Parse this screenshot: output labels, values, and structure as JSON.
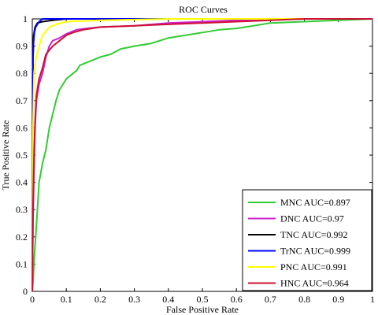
{
  "chart_data": {
    "type": "line",
    "title": "ROC Curves",
    "xlabel": "False Positive Rate",
    "ylabel": "True Positive Rate",
    "xlim": [
      0,
      1
    ],
    "ylim": [
      0,
      1
    ],
    "xticks": [
      "0",
      "0.1",
      "0.2",
      "0.3",
      "0.4",
      "0.5",
      "0.6",
      "0.7",
      "0.8",
      "0.9",
      "1"
    ],
    "yticks": [
      "0",
      "0.1",
      "0.2",
      "0.3",
      "0.4",
      "0.5",
      "0.6",
      "0.7",
      "0.8",
      "0.9",
      "1"
    ],
    "grid": false,
    "legend_position": "bottom-right",
    "series": [
      {
        "name": "MNC AUC=0.897",
        "color": "#33cc33",
        "points": [
          [
            0,
            0
          ],
          [
            0.003,
            0.05
          ],
          [
            0.006,
            0.13
          ],
          [
            0.01,
            0.2
          ],
          [
            0.015,
            0.3
          ],
          [
            0.02,
            0.4
          ],
          [
            0.03,
            0.47
          ],
          [
            0.04,
            0.52
          ],
          [
            0.05,
            0.6
          ],
          [
            0.06,
            0.65
          ],
          [
            0.07,
            0.7
          ],
          [
            0.08,
            0.74
          ],
          [
            0.09,
            0.76
          ],
          [
            0.1,
            0.78
          ],
          [
            0.12,
            0.8
          ],
          [
            0.13,
            0.81
          ],
          [
            0.14,
            0.83
          ],
          [
            0.16,
            0.84
          ],
          [
            0.18,
            0.85
          ],
          [
            0.2,
            0.86
          ],
          [
            0.23,
            0.87
          ],
          [
            0.26,
            0.89
          ],
          [
            0.3,
            0.9
          ],
          [
            0.35,
            0.91
          ],
          [
            0.4,
            0.93
          ],
          [
            0.45,
            0.94
          ],
          [
            0.5,
            0.95
          ],
          [
            0.55,
            0.96
          ],
          [
            0.6,
            0.965
          ],
          [
            0.65,
            0.975
          ],
          [
            0.7,
            0.985
          ],
          [
            0.8,
            0.99
          ],
          [
            0.9,
            0.995
          ],
          [
            1,
            1
          ]
        ]
      },
      {
        "name": "DNC AUC=0.97",
        "color": "#cc22cc",
        "points": [
          [
            0,
            0
          ],
          [
            0.002,
            0.25
          ],
          [
            0.005,
            0.45
          ],
          [
            0.008,
            0.6
          ],
          [
            0.012,
            0.7
          ],
          [
            0.02,
            0.76
          ],
          [
            0.03,
            0.8
          ],
          [
            0.04,
            0.86
          ],
          [
            0.05,
            0.9
          ],
          [
            0.06,
            0.92
          ],
          [
            0.08,
            0.93
          ],
          [
            0.1,
            0.945
          ],
          [
            0.13,
            0.96
          ],
          [
            0.16,
            0.965
          ],
          [
            0.2,
            0.97
          ],
          [
            0.3,
            0.975
          ],
          [
            0.4,
            0.985
          ],
          [
            0.5,
            0.99
          ],
          [
            0.6,
            0.995
          ],
          [
            0.8,
            1
          ],
          [
            1,
            1
          ]
        ]
      },
      {
        "name": "TNC AUC=0.992",
        "color": "#000000",
        "points": [
          [
            0,
            0
          ],
          [
            0.002,
            0.85
          ],
          [
            0.004,
            0.94
          ],
          [
            0.008,
            0.97
          ],
          [
            0.015,
            0.985
          ],
          [
            0.03,
            0.99
          ],
          [
            0.06,
            0.995
          ],
          [
            0.1,
            1
          ],
          [
            1,
            1
          ]
        ]
      },
      {
        "name": "TrNC AUC=0.999",
        "color": "#0000ff",
        "points": [
          [
            0,
            0
          ],
          [
            0.001,
            0.8
          ],
          [
            0.003,
            0.9
          ],
          [
            0.006,
            0.95
          ],
          [
            0.01,
            0.97
          ],
          [
            0.02,
            0.99
          ],
          [
            0.03,
            1
          ],
          [
            1,
            1
          ]
        ]
      },
      {
        "name": "PNC AUC=0.991",
        "color": "#ffff00",
        "points": [
          [
            0,
            0
          ],
          [
            0.002,
            0.6
          ],
          [
            0.005,
            0.8
          ],
          [
            0.01,
            0.85
          ],
          [
            0.02,
            0.9
          ],
          [
            0.03,
            0.94
          ],
          [
            0.05,
            0.97
          ],
          [
            0.07,
            0.98
          ],
          [
            0.1,
            0.99
          ],
          [
            0.2,
            0.995
          ],
          [
            0.4,
            1
          ],
          [
            1,
            1
          ]
        ]
      },
      {
        "name": "HNC AUC=0.964",
        "color": "#cc1133",
        "points": [
          [
            0,
            0
          ],
          [
            0.002,
            0.3
          ],
          [
            0.005,
            0.5
          ],
          [
            0.008,
            0.62
          ],
          [
            0.012,
            0.72
          ],
          [
            0.02,
            0.78
          ],
          [
            0.03,
            0.82
          ],
          [
            0.04,
            0.87
          ],
          [
            0.06,
            0.9
          ],
          [
            0.08,
            0.92
          ],
          [
            0.1,
            0.94
          ],
          [
            0.12,
            0.95
          ],
          [
            0.15,
            0.96
          ],
          [
            0.2,
            0.97
          ],
          [
            0.3,
            0.975
          ],
          [
            0.4,
            0.98
          ],
          [
            0.5,
            0.985
          ],
          [
            0.6,
            0.99
          ],
          [
            0.7,
            0.995
          ],
          [
            0.8,
            1
          ],
          [
            1,
            1
          ]
        ]
      }
    ]
  }
}
